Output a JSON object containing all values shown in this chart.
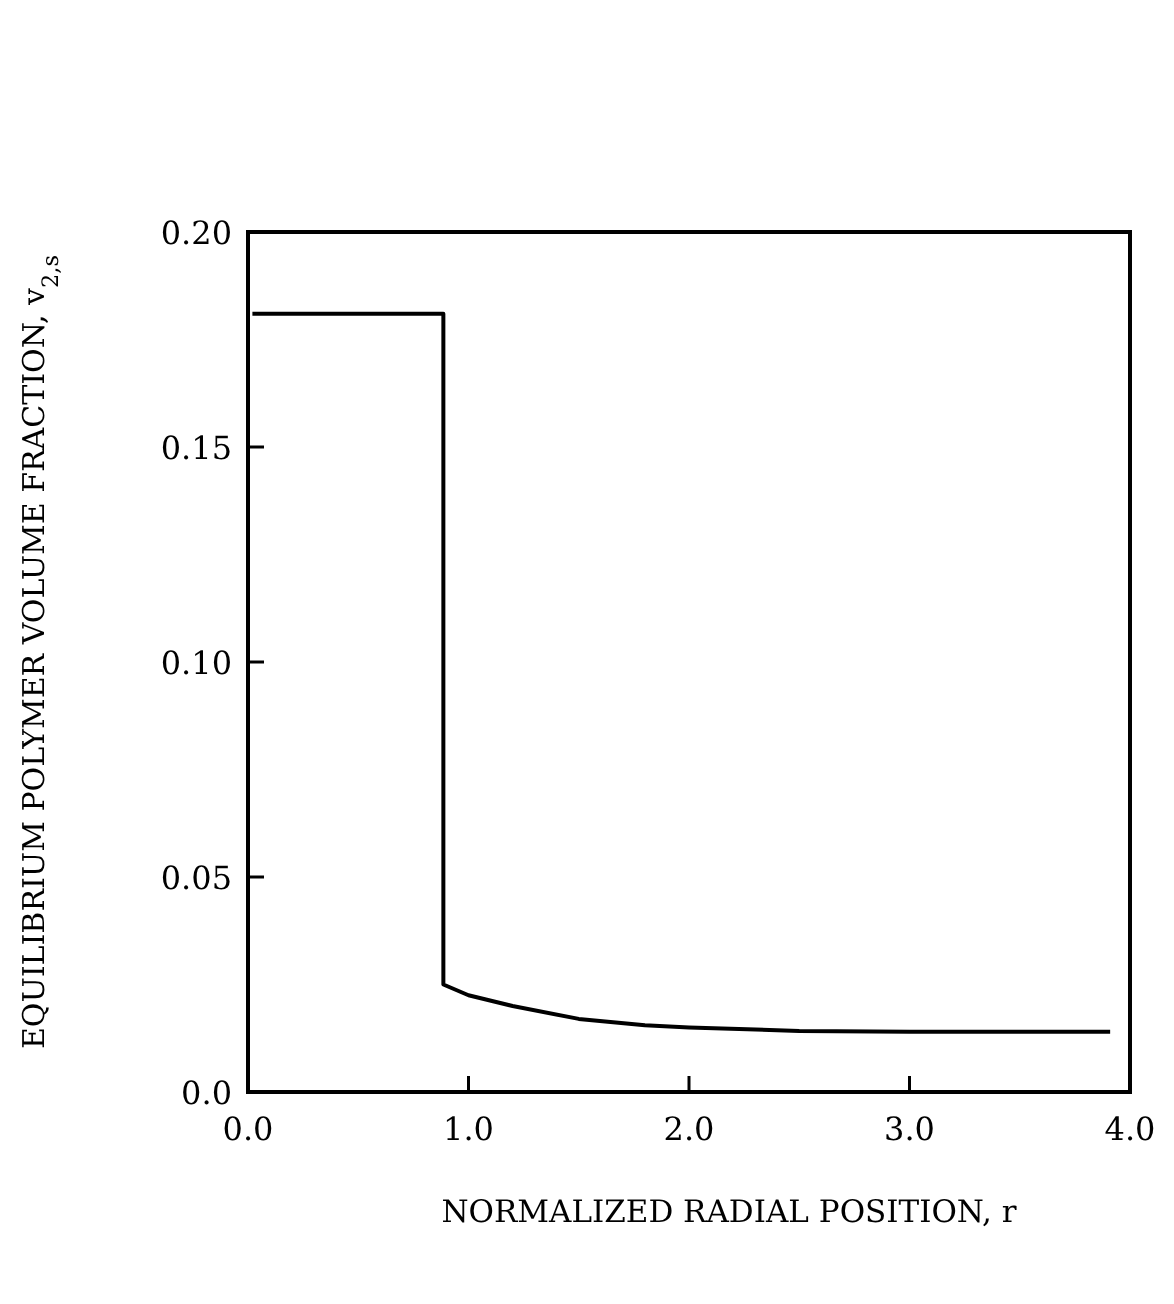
{
  "chart_data": {
    "type": "line",
    "xlabel": "NORMALIZED RADIAL POSITION, r",
    "ylabel": "EQUILIBRIUM POLYMER VOLUME FRACTION, v$_{2,s}$",
    "xlim": [
      0,
      4
    ],
    "ylim": [
      0,
      0.2
    ],
    "xticks": [
      {
        "value": 0,
        "label": "0.0"
      },
      {
        "value": 1,
        "label": "1.0"
      },
      {
        "value": 2,
        "label": "2.0"
      },
      {
        "value": 3,
        "label": "3.0"
      },
      {
        "value": 4,
        "label": "4.0"
      }
    ],
    "yticks": [
      {
        "value": 0,
        "label": "0.0"
      },
      {
        "value": 0.05,
        "label": "0.05"
      },
      {
        "value": 0.1,
        "label": "0.10"
      },
      {
        "value": 0.15,
        "label": "0.15"
      },
      {
        "value": 0.2,
        "label": "0.20"
      }
    ],
    "grid": false,
    "line_style": "solid",
    "series": [
      {
        "color": "#000000",
        "x": [
          0.02,
          0.886,
          0.886,
          1.0,
          1.2,
          1.5,
          1.8,
          2.0,
          2.5,
          3.0,
          3.91
        ],
        "values": [
          0.181,
          0.181,
          0.025,
          0.0225,
          0.02,
          0.017,
          0.0155,
          0.015,
          0.0142,
          0.014,
          0.014
        ]
      }
    ]
  }
}
